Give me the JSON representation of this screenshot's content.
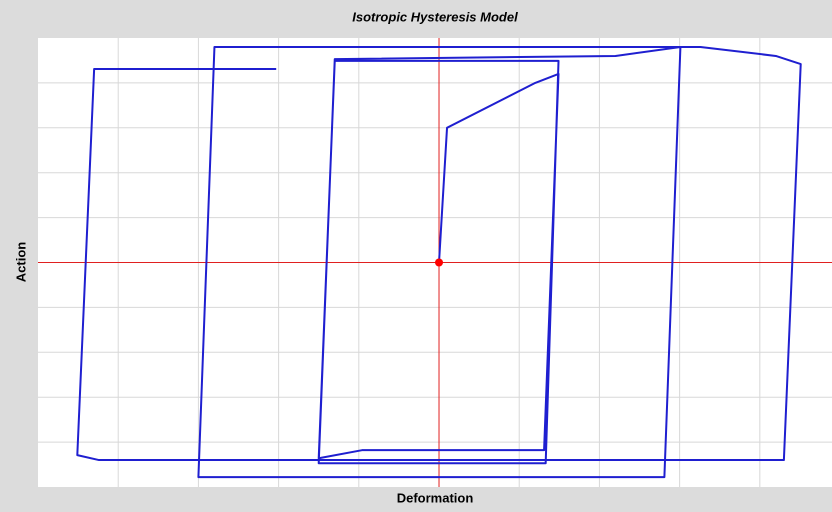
{
  "chart_data": {
    "type": "line",
    "title": "Isotropic Hysteresis Model",
    "xlabel": "Deformation",
    "ylabel": "Action",
    "x": [
      0,
      0.1,
      1.2,
      1.49,
      1.31,
      -0.96,
      -1.5,
      -1.3,
      1.49,
      1.33,
      -1.5,
      -1.3,
      2.2,
      3.01,
      2.81,
      -3.0,
      -2.8,
      3.01,
      3.26,
      4.2,
      4.51,
      4.3,
      -4.24,
      -4.51,
      -4.3,
      -2.03
    ],
    "series": [
      {
        "color": "#1f1fd0",
        "values": [
          0,
          3.0,
          4.0,
          4.2,
          -4.18,
          -4.18,
          -4.36,
          4.49,
          4.49,
          -4.47,
          -4.47,
          4.53,
          4.6,
          4.8,
          -4.78,
          -4.78,
          4.8,
          4.8,
          4.8,
          4.6,
          4.42,
          -4.4,
          -4.4,
          -4.29,
          4.31,
          4.31
        ]
      }
    ],
    "xlim": [
      -5,
      4.9
    ],
    "ylim": [
      -5,
      5
    ],
    "xticks": [
      -4,
      -3,
      -2,
      -1,
      0,
      1,
      2,
      3,
      4
    ],
    "yticks": [
      -4,
      -3,
      -2,
      -1,
      0,
      1,
      2,
      3,
      4
    ],
    "grid": true,
    "zero_lines_color": "#e02020",
    "origin_point": {
      "x": 0,
      "y": 0,
      "color": "#ff0000"
    }
  }
}
